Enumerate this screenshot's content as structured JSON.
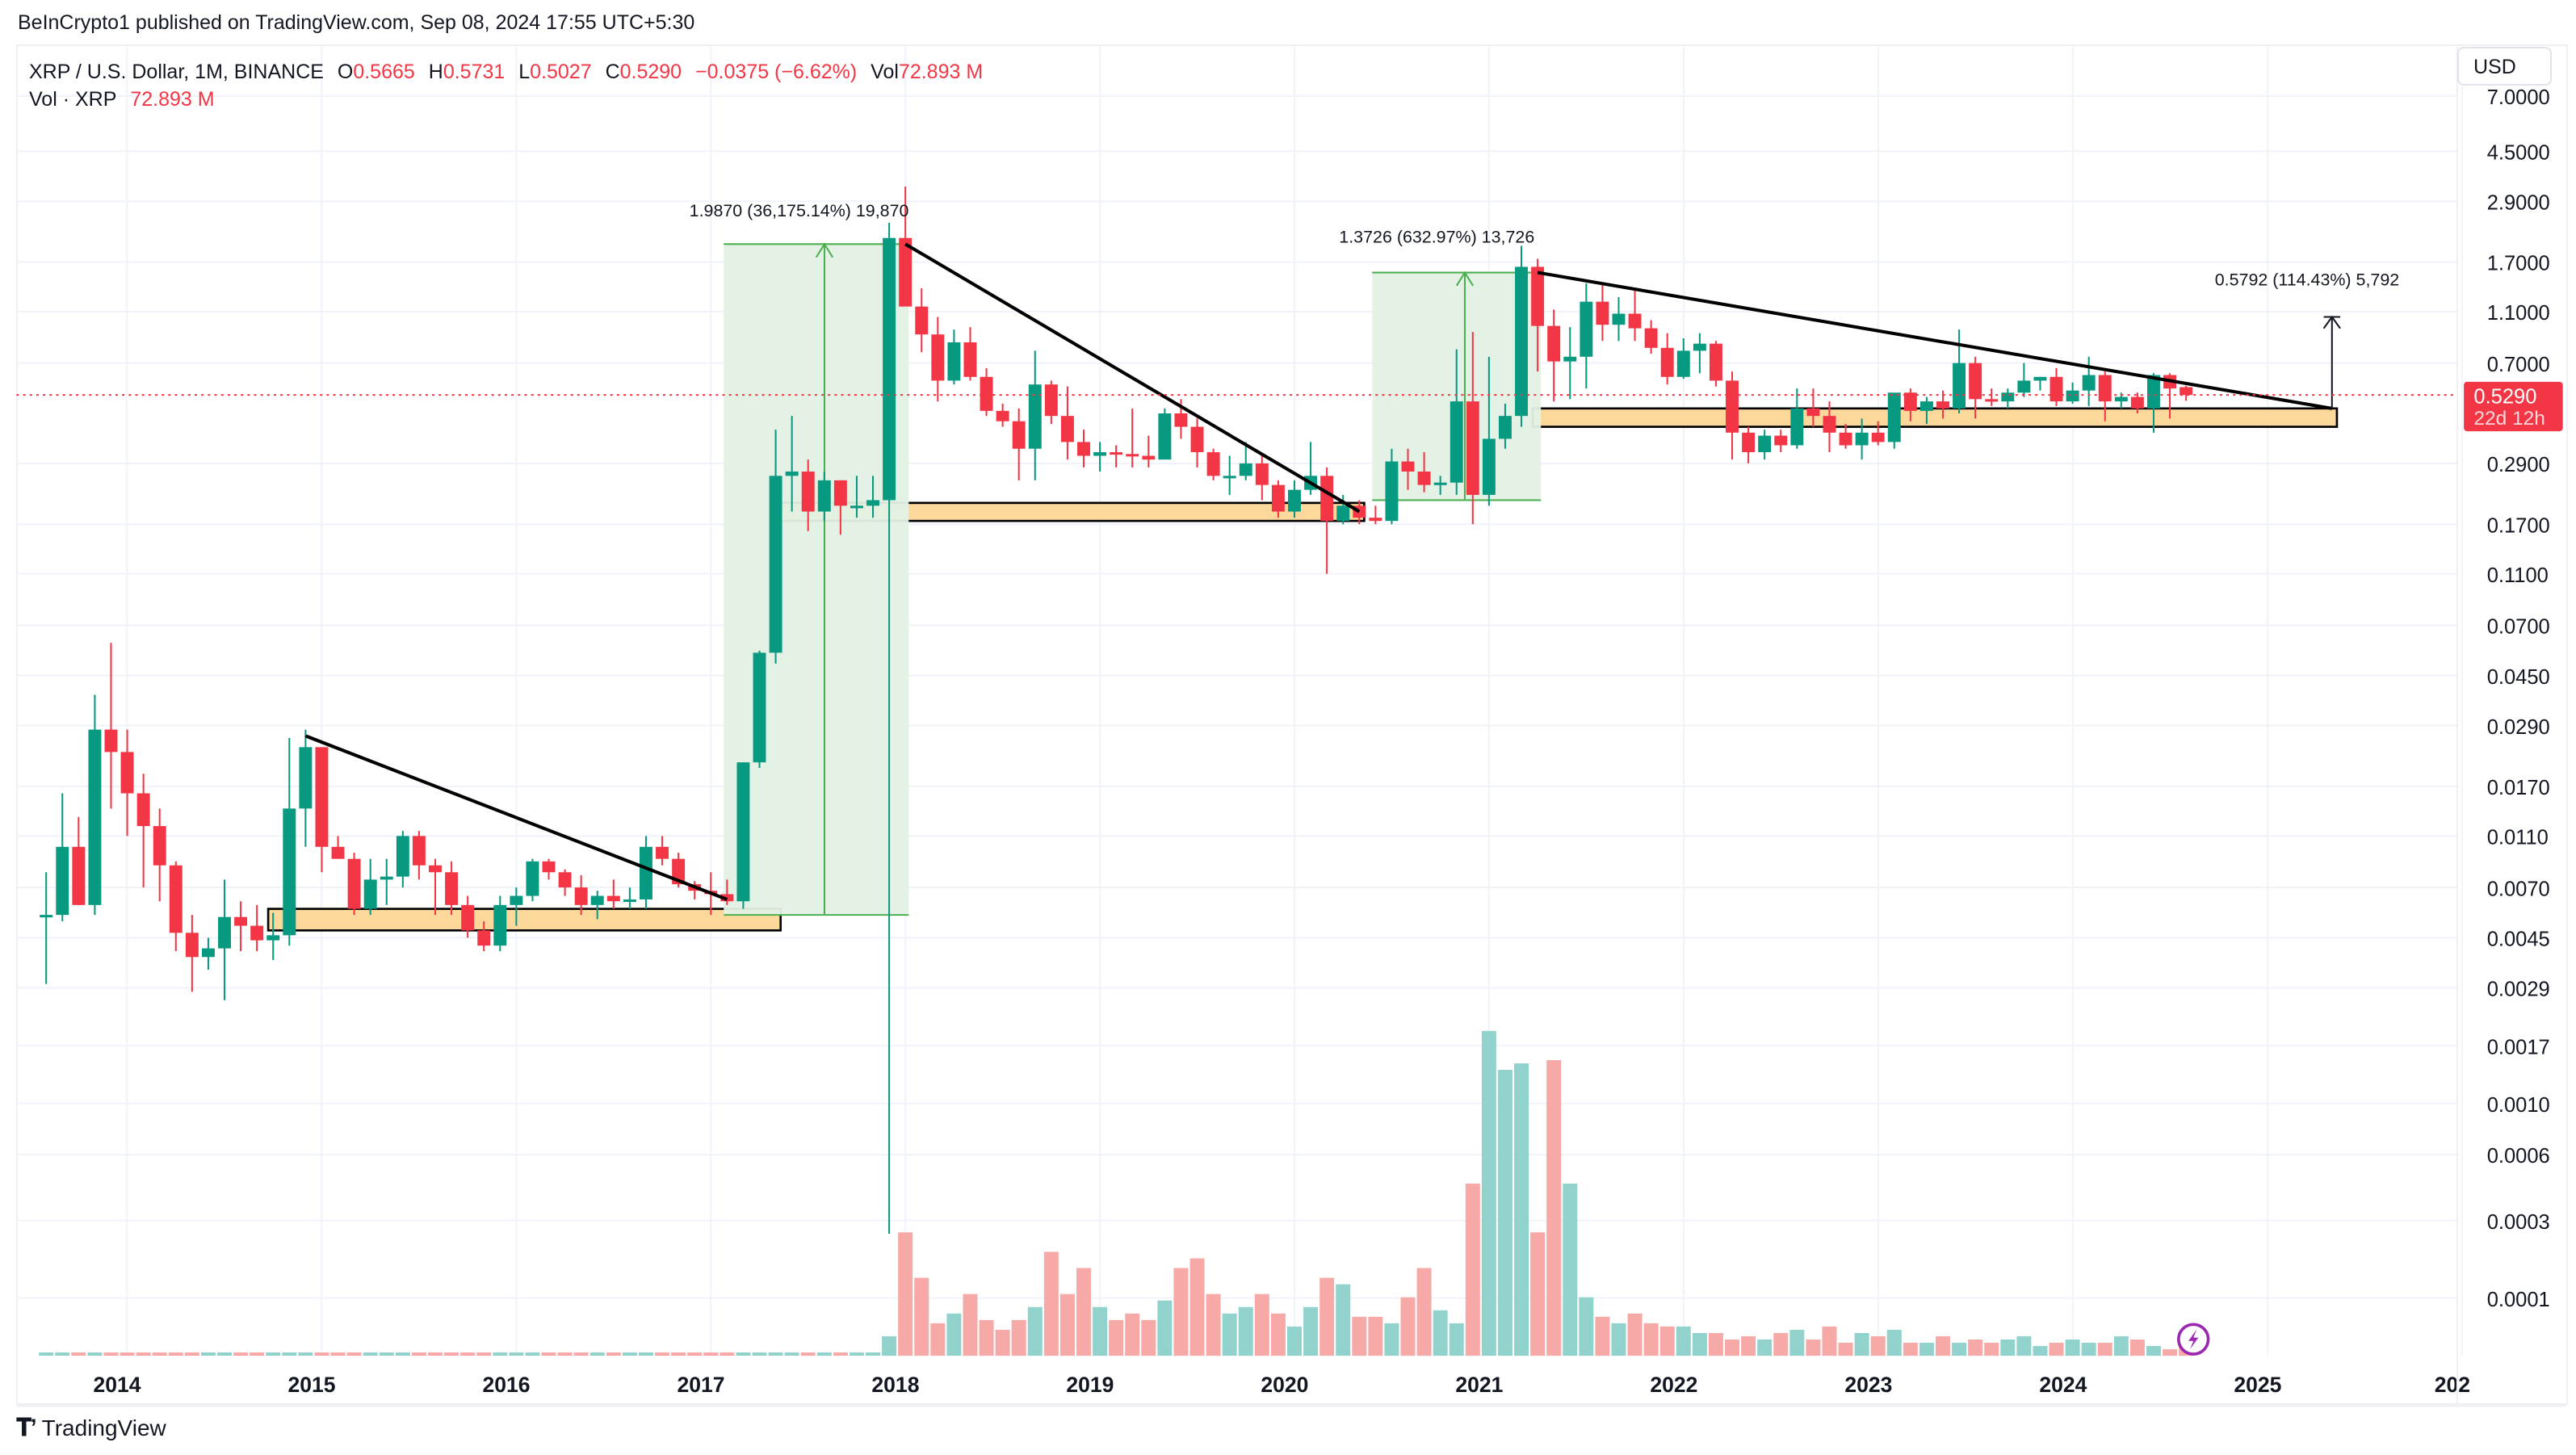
{
  "header": {
    "published": "BeInCrypto1 published on TradingView.com, Sep 08, 2024 17:55 UTC+5:30"
  },
  "legend": {
    "symbol": "XRP / U.S. Dollar, 1M, BINANCE",
    "open_label": "O",
    "open": "0.5665",
    "high_label": "H",
    "high": "0.5731",
    "low_label": "L",
    "low": "0.5027",
    "close_label": "C",
    "close": "0.5290",
    "change": "−0.0375 (−6.62%)",
    "vol_label": "Vol",
    "vol": "72.893 M",
    "vol_series_label": "Vol · XRP",
    "vol_series_value": "72.893 M"
  },
  "price_axis": {
    "currency_button": "USD",
    "ticks": [
      "7.0000",
      "4.5000",
      "2.9000",
      "1.7000",
      "1.1000",
      "0.7000",
      "0.2900",
      "0.1700",
      "0.1100",
      "0.0700",
      "0.0450",
      "0.0290",
      "0.0170",
      "0.0110",
      "0.0070",
      "0.0045",
      "0.0029",
      "0.0017",
      "0.0010",
      "0.0006",
      "0.0003",
      "0.0001"
    ],
    "current_price": "0.5290",
    "countdown": "22d 12h"
  },
  "time_axis": {
    "ticks": [
      "2014",
      "2015",
      "2016",
      "2017",
      "2018",
      "2019",
      "2020",
      "2021",
      "2022",
      "2023",
      "2024",
      "2025",
      "202"
    ]
  },
  "annotations": {
    "range1": "1.9870 (36,175.14%) 19,870",
    "range2": "1.3726 (632.97%) 13,726",
    "range3": "0.5792 (114.43%) 5,792"
  },
  "footer": {
    "brand": "TradingView"
  },
  "colors": {
    "up": "#089981",
    "down": "#f23645",
    "vol_up": "#92d2cc",
    "vol_down": "#f7a9a7",
    "support_zone": "#fdd89b",
    "range_fill": "#e3f1e4",
    "range_line": "#4caf50",
    "trendline": "#000000",
    "price_label_bg": "#f23645",
    "flash_icon": "#9c27b0"
  },
  "chart_data": {
    "type": "candlestick",
    "title": "XRP / U.S. Dollar, 1M, BINANCE",
    "y_scale": "log",
    "ylim": [
      0.0001,
      7.0
    ],
    "x_start": "2013-08",
    "x_end": "2024-09",
    "ohlc_note": "approximate monthly open/high/low/close read from log axis",
    "candles": [
      [
        0.0055,
        0.008,
        0.003,
        0.0055
      ],
      [
        0.0055,
        0.016,
        0.0052,
        0.01
      ],
      [
        0.01,
        0.013,
        0.006,
        0.006
      ],
      [
        0.006,
        0.038,
        0.0055,
        0.028
      ],
      [
        0.028,
        0.06,
        0.014,
        0.023
      ],
      [
        0.023,
        0.028,
        0.011,
        0.016
      ],
      [
        0.016,
        0.019,
        0.007,
        0.012
      ],
      [
        0.012,
        0.014,
        0.0062,
        0.0085
      ],
      [
        0.0085,
        0.0088,
        0.004,
        0.0047
      ],
      [
        0.0047,
        0.0055,
        0.0028,
        0.0038
      ],
      [
        0.0038,
        0.0045,
        0.0034,
        0.0041
      ],
      [
        0.0041,
        0.0075,
        0.0026,
        0.0054
      ],
      [
        0.0054,
        0.0062,
        0.004,
        0.005
      ],
      [
        0.005,
        0.006,
        0.004,
        0.0044
      ],
      [
        0.0044,
        0.0056,
        0.0037,
        0.0046
      ],
      [
        0.0046,
        0.026,
        0.0042,
        0.014
      ],
      [
        0.014,
        0.028,
        0.01,
        0.024
      ],
      [
        0.024,
        0.024,
        0.008,
        0.01
      ],
      [
        0.01,
        0.011,
        0.009,
        0.009
      ],
      [
        0.009,
        0.0095,
        0.0055,
        0.0058
      ],
      [
        0.0058,
        0.009,
        0.0055,
        0.0075
      ],
      [
        0.0075,
        0.009,
        0.006,
        0.0077
      ],
      [
        0.0077,
        0.0115,
        0.007,
        0.011
      ],
      [
        0.011,
        0.0115,
        0.0075,
        0.0085
      ],
      [
        0.0085,
        0.009,
        0.0055,
        0.008
      ],
      [
        0.008,
        0.0088,
        0.0055,
        0.006
      ],
      [
        0.006,
        0.0065,
        0.0045,
        0.0048
      ],
      [
        0.0048,
        0.0052,
        0.004,
        0.0042
      ],
      [
        0.0042,
        0.0065,
        0.004,
        0.006
      ],
      [
        0.006,
        0.007,
        0.005,
        0.0065
      ],
      [
        0.0065,
        0.009,
        0.0062,
        0.0088
      ],
      [
        0.0088,
        0.009,
        0.0075,
        0.008
      ],
      [
        0.008,
        0.0082,
        0.0065,
        0.007
      ],
      [
        0.007,
        0.0078,
        0.0055,
        0.006
      ],
      [
        0.006,
        0.0068,
        0.0053,
        0.0065
      ],
      [
        0.0065,
        0.0075,
        0.0058,
        0.0062
      ],
      [
        0.0062,
        0.007,
        0.0058,
        0.0063
      ],
      [
        0.0063,
        0.011,
        0.0058,
        0.01
      ],
      [
        0.01,
        0.011,
        0.0085,
        0.009
      ],
      [
        0.009,
        0.0095,
        0.007,
        0.0072
      ],
      [
        0.0072,
        0.0074,
        0.0063,
        0.0068
      ],
      [
        0.0068,
        0.008,
        0.0055,
        0.0066
      ],
      [
        0.0066,
        0.0075,
        0.006,
        0.0062
      ],
      [
        0.0062,
        0.021,
        0.0058,
        0.021
      ],
      [
        0.021,
        0.056,
        0.02,
        0.055
      ],
      [
        0.055,
        0.39,
        0.05,
        0.26
      ],
      [
        0.26,
        0.44,
        0.19,
        0.27
      ],
      [
        0.27,
        0.3,
        0.16,
        0.19
      ],
      [
        0.19,
        0.27,
        0.175,
        0.25
      ],
      [
        0.25,
        0.25,
        0.155,
        0.2
      ],
      [
        0.2,
        0.26,
        0.18,
        0.2
      ],
      [
        0.2,
        0.26,
        0.18,
        0.21
      ],
      [
        0.21,
        2.4,
        0.0002,
        2.1
      ],
      [
        2.1,
        3.3,
        1.25,
        1.15
      ],
      [
        1.15,
        1.35,
        0.77,
        0.9
      ],
      [
        0.9,
        1.05,
        0.5,
        0.6
      ],
      [
        0.6,
        0.94,
        0.58,
        0.84
      ],
      [
        0.84,
        0.96,
        0.6,
        0.62
      ],
      [
        0.62,
        0.67,
        0.44,
        0.46
      ],
      [
        0.46,
        0.49,
        0.4,
        0.42
      ],
      [
        0.42,
        0.47,
        0.25,
        0.33
      ],
      [
        0.33,
        0.78,
        0.25,
        0.58
      ],
      [
        0.58,
        0.6,
        0.41,
        0.44
      ],
      [
        0.44,
        0.57,
        0.3,
        0.35
      ],
      [
        0.35,
        0.39,
        0.28,
        0.31
      ],
      [
        0.31,
        0.35,
        0.27,
        0.32
      ],
      [
        0.32,
        0.34,
        0.28,
        0.315
      ],
      [
        0.315,
        0.47,
        0.28,
        0.31
      ],
      [
        0.31,
        0.37,
        0.28,
        0.3
      ],
      [
        0.3,
        0.47,
        0.3,
        0.45
      ],
      [
        0.45,
        0.51,
        0.36,
        0.4
      ],
      [
        0.4,
        0.43,
        0.28,
        0.32
      ],
      [
        0.32,
        0.33,
        0.25,
        0.26
      ],
      [
        0.26,
        0.31,
        0.22,
        0.26
      ],
      [
        0.26,
        0.35,
        0.25,
        0.29
      ],
      [
        0.29,
        0.31,
        0.21,
        0.24
      ],
      [
        0.24,
        0.25,
        0.18,
        0.19
      ],
      [
        0.19,
        0.25,
        0.18,
        0.23
      ],
      [
        0.23,
        0.35,
        0.22,
        0.26
      ],
      [
        0.26,
        0.28,
        0.11,
        0.175
      ],
      [
        0.175,
        0.22,
        0.17,
        0.2
      ],
      [
        0.2,
        0.21,
        0.17,
        0.18
      ],
      [
        0.18,
        0.2,
        0.17,
        0.175
      ],
      [
        0.175,
        0.33,
        0.17,
        0.295
      ],
      [
        0.295,
        0.33,
        0.23,
        0.27
      ],
      [
        0.27,
        0.32,
        0.225,
        0.24
      ],
      [
        0.24,
        0.26,
        0.22,
        0.245
      ],
      [
        0.245,
        0.79,
        0.22,
        0.5
      ],
      [
        0.5,
        0.92,
        0.17,
        0.22
      ],
      [
        0.22,
        0.74,
        0.2,
        0.36
      ],
      [
        0.36,
        0.49,
        0.33,
        0.44
      ],
      [
        0.44,
        1.96,
        0.4,
        1.63
      ],
      [
        1.63,
        1.75,
        0.65,
        0.97
      ],
      [
        0.97,
        1.12,
        0.5,
        0.71
      ],
      [
        0.71,
        0.96,
        0.51,
        0.74
      ],
      [
        0.74,
        1.41,
        0.56,
        1.2
      ],
      [
        1.2,
        1.41,
        0.85,
        0.98
      ],
      [
        0.98,
        1.25,
        0.85,
        1.08
      ],
      [
        1.08,
        1.35,
        0.85,
        0.95
      ],
      [
        0.95,
        1.02,
        0.76,
        0.8
      ],
      [
        0.8,
        0.91,
        0.58,
        0.62
      ],
      [
        0.62,
        0.87,
        0.61,
        0.78
      ],
      [
        0.78,
        0.91,
        0.64,
        0.83
      ],
      [
        0.83,
        0.85,
        0.57,
        0.6
      ],
      [
        0.6,
        0.65,
        0.3,
        0.38
      ],
      [
        0.38,
        0.4,
        0.29,
        0.32
      ],
      [
        0.32,
        0.39,
        0.3,
        0.37
      ],
      [
        0.37,
        0.39,
        0.32,
        0.34
      ],
      [
        0.34,
        0.56,
        0.33,
        0.47
      ],
      [
        0.47,
        0.56,
        0.4,
        0.44
      ],
      [
        0.44,
        0.5,
        0.32,
        0.38
      ],
      [
        0.38,
        0.41,
        0.33,
        0.34
      ],
      [
        0.34,
        0.43,
        0.3,
        0.38
      ],
      [
        0.38,
        0.42,
        0.34,
        0.35
      ],
      [
        0.35,
        0.43,
        0.33,
        0.54
      ],
      [
        0.54,
        0.56,
        0.42,
        0.46
      ],
      [
        0.46,
        0.52,
        0.41,
        0.5
      ],
      [
        0.5,
        0.55,
        0.43,
        0.47
      ],
      [
        0.47,
        0.94,
        0.45,
        0.7
      ],
      [
        0.7,
        0.74,
        0.43,
        0.51
      ],
      [
        0.51,
        0.56,
        0.48,
        0.5
      ],
      [
        0.5,
        0.56,
        0.47,
        0.54
      ],
      [
        0.54,
        0.7,
        0.52,
        0.6
      ],
      [
        0.6,
        0.62,
        0.55,
        0.62
      ],
      [
        0.62,
        0.67,
        0.48,
        0.5
      ],
      [
        0.5,
        0.59,
        0.49,
        0.55
      ],
      [
        0.55,
        0.74,
        0.48,
        0.63
      ],
      [
        0.63,
        0.65,
        0.42,
        0.5
      ],
      [
        0.5,
        0.54,
        0.47,
        0.52
      ],
      [
        0.52,
        0.54,
        0.45,
        0.47
      ],
      [
        0.47,
        0.64,
        0.38,
        0.63
      ],
      [
        0.63,
        0.64,
        0.43,
        0.56
      ],
      [
        0.5665,
        0.5731,
        0.5027,
        0.529
      ]
    ],
    "volume_note": "relative volume bar heights (0-1 scale, Dec 2020 = 1.0)",
    "support_zones": [
      {
        "from": "2014-10",
        "to": "2017-05",
        "low": 0.0048,
        "high": 0.0058
      },
      {
        "from": "2017-05",
        "to": "2020-05",
        "low": 0.175,
        "high": 0.205
      },
      {
        "from": "2021-04",
        "to": "2025-05",
        "low": 0.4,
        "high": 0.47
      }
    ],
    "trendlines": [
      {
        "from": [
          "2014-12",
          0.0265
        ],
        "to": [
          "2017-02",
          0.0063
        ]
      },
      {
        "from": [
          "2018-01",
          1.99
        ],
        "to": [
          "2020-05",
          0.19
        ]
      },
      {
        "from": [
          "2021-04",
          1.55
        ],
        "to": [
          "2025-05",
          0.47
        ]
      }
    ],
    "range_measures": [
      {
        "label": "1.9870 (36,175.14%) 19,870",
        "from": "2017-02",
        "to": "2018-01",
        "low": 0.0055,
        "high": 1.99
      },
      {
        "label": "1.3726 (632.97%) 13,726",
        "from": "2020-06",
        "to": "2021-04",
        "low": 0.21,
        "high": 1.55
      },
      {
        "label": "0.5792 (114.43%) 5,792",
        "x": "2025-05",
        "low": 0.47,
        "high": 1.05
      }
    ]
  }
}
